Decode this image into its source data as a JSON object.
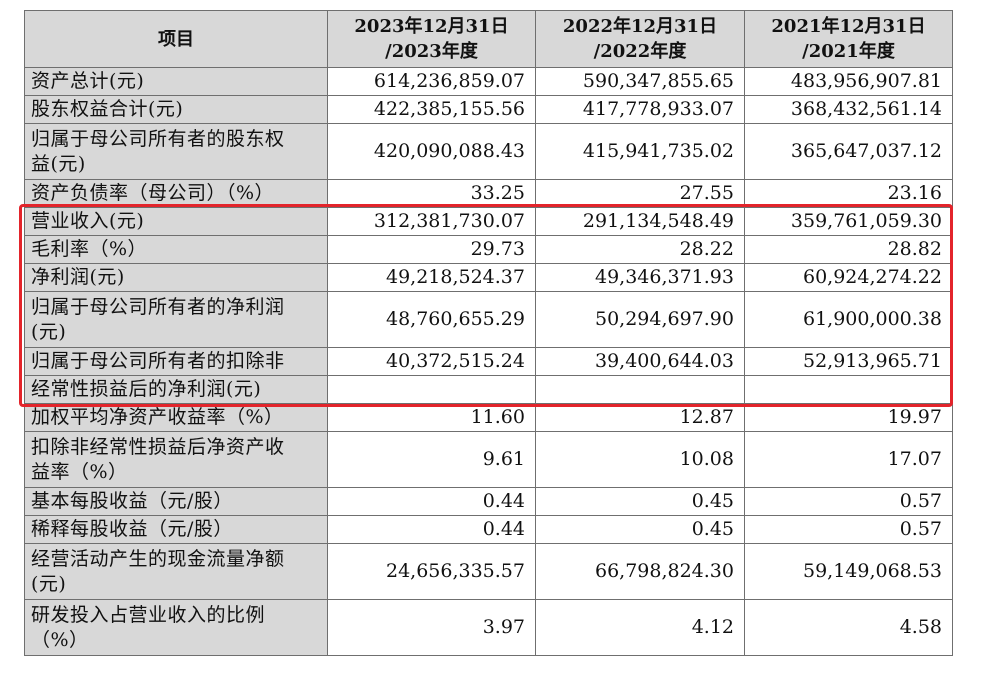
{
  "header": {
    "col0": "项目",
    "col1": [
      "2023年12月31日",
      "/2023年度"
    ],
    "col2": [
      "2022年12月31日",
      "/2022年度"
    ],
    "col3": [
      "2021年12月31日",
      "/2021年度"
    ]
  },
  "rows": [
    {
      "label": [
        "资产总计(元)"
      ],
      "v": [
        "614,236,859.07",
        "590,347,855.65",
        "483,956,907.81"
      ],
      "h": 1
    },
    {
      "label": [
        "股东权益合计(元)"
      ],
      "v": [
        "422,385,155.56",
        "417,778,933.07",
        "368,432,561.14"
      ],
      "h": 1
    },
    {
      "label": [
        "归属于母公司所有者的股东权",
        "益(元)"
      ],
      "v": [
        "420,090,088.43",
        "415,941,735.02",
        "365,647,037.12"
      ],
      "h": 2
    },
    {
      "label": [
        "资产负债率（母公司）（%）"
      ],
      "v": [
        "33.25",
        "27.55",
        "23.16"
      ],
      "h": 1
    },
    {
      "label": [
        "营业收入(元)"
      ],
      "v": [
        "312,381,730.07",
        "291,134,548.49",
        "359,761,059.30"
      ],
      "h": 1
    },
    {
      "label": [
        "毛利率（%）"
      ],
      "v": [
        "29.73",
        "28.22",
        "28.82"
      ],
      "h": 1
    },
    {
      "label": [
        "净利润(元)"
      ],
      "v": [
        "49,218,524.37",
        "49,346,371.93",
        "60,924,274.22"
      ],
      "h": 1
    },
    {
      "label": [
        "归属于母公司所有者的净利润",
        "(元)"
      ],
      "v": [
        "48,760,655.29",
        "50,294,697.90",
        "61,900,000.38"
      ],
      "h": 2
    },
    {
      "label": [
        "归属于母公司所有者的扣除非"
      ],
      "v": [
        "40,372,515.24",
        "39,400,644.03",
        "52,913,965.71"
      ],
      "h": 1
    },
    {
      "label": [
        "经常性损益后的净利润(元)"
      ],
      "v": [
        "",
        "",
        ""
      ],
      "h": 1
    },
    {
      "label": [
        "加权平均净资产收益率（%）"
      ],
      "v": [
        "11.60",
        "12.87",
        "19.97"
      ],
      "h": 1
    },
    {
      "label": [
        "扣除非经常性损益后净资产收",
        "益率（%）"
      ],
      "v": [
        "9.61",
        "10.08",
        "17.07"
      ],
      "h": 2
    },
    {
      "label": [
        "基本每股收益（元/股）"
      ],
      "v": [
        "0.44",
        "0.45",
        "0.57"
      ],
      "h": 1
    },
    {
      "label": [
        "稀释每股收益（元/股）"
      ],
      "v": [
        "0.44",
        "0.45",
        "0.57"
      ],
      "h": 1
    },
    {
      "label": [
        "经营活动产生的现金流量净额",
        "(元)"
      ],
      "v": [
        "24,656,335.57",
        "66,798,824.30",
        "59,149,068.53"
      ],
      "h": 2
    },
    {
      "label": [
        "研发投入占营业收入的比例",
        "（%）"
      ],
      "v": [
        "3.97",
        "4.12",
        "4.58"
      ],
      "h": 2
    }
  ],
  "highlight_color": "#e3242b"
}
